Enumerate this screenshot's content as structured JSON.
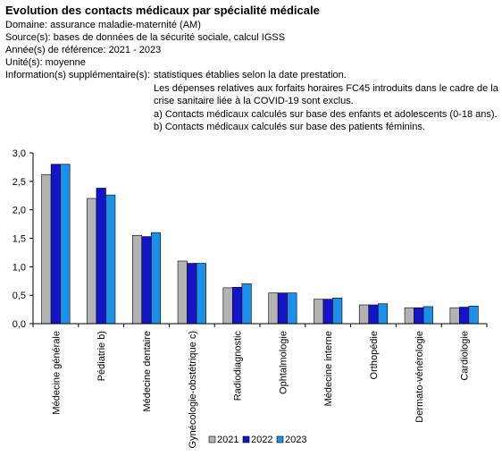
{
  "header": {
    "title": "Evolution des contacts médicaux par spécialité médicale",
    "domain_line": "Domaine: assurance maladie-maternité (AM)",
    "source_line": "Source(s): bases de données de la sécurité sociale, calcul IGSS",
    "years_line": "Année(s) de référence: 2021 - 2023",
    "unit_line": "Unité(s): moyenne",
    "info_label": "Information(s) supplémentaire(s):",
    "info_lines": [
      "statistiques établies selon la date prestation.",
      "Les dépenses relatives aux forfaits horaires FC45 introduits dans le cadre de la",
      "crise sanitaire liée à la COVID-19 sont exclus.",
      "a) Contacts médicaux calculés sur base des enfants et adolescents (0-18 ans).",
      "b) Contacts médicaux calculés sur base des patients féminins."
    ]
  },
  "chart_data": {
    "type": "bar",
    "title": "",
    "xlabel": "",
    "ylabel": "",
    "categories": [
      "Médecine générale",
      "Pédiatrie b)",
      "Médecine dentaire",
      "Gynécologie-obstétrique c)",
      "Radiodiagnostic",
      "Ophtalmologie",
      "Médecine interne",
      "Orthopédie",
      "Dermato-vénérologie",
      "Cardiologie"
    ],
    "series": [
      {
        "name": "2021",
        "color": "#b3b3b3",
        "values": [
          2.62,
          2.2,
          1.55,
          1.1,
          0.63,
          0.54,
          0.43,
          0.33,
          0.28,
          0.28
        ]
      },
      {
        "name": "2022",
        "color": "#1414c8",
        "values": [
          2.8,
          2.38,
          1.53,
          1.06,
          0.64,
          0.54,
          0.43,
          0.33,
          0.28,
          0.29
        ]
      },
      {
        "name": "2023",
        "color": "#1c8fe6",
        "values": [
          2.8,
          2.26,
          1.6,
          1.06,
          0.7,
          0.54,
          0.45,
          0.35,
          0.3,
          0.31
        ]
      }
    ],
    "ylim": [
      0,
      3.0
    ],
    "yticks": [
      "0,0",
      "0,5",
      "1,0",
      "1,5",
      "2,0",
      "2,5",
      "3,0"
    ],
    "grid": false,
    "legend_position": "bottom"
  }
}
